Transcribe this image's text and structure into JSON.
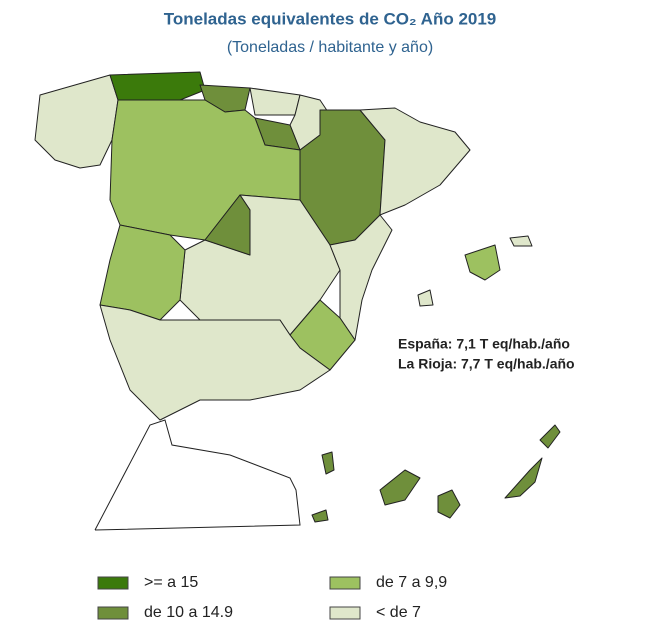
{
  "header": {
    "title": "Toneladas equivalentes de CO₂ Año 2019",
    "subtitle": "(Toneladas / habitante y año)"
  },
  "annotations": [
    "España: 7,1 T eq/hab./año",
    "La Rioja: 7,7 T eq/hab./año"
  ],
  "legend": [
    {
      "label": ">= a 15",
      "color": "#3b7a0b"
    },
    {
      "label": "de 10 a 14.9",
      "color": "#6f8f3b"
    },
    {
      "label": "de 7 a 9,9",
      "color": "#9dc160"
    },
    {
      "label": "< de 7",
      "color": "#dfe7cb"
    }
  ]
}
